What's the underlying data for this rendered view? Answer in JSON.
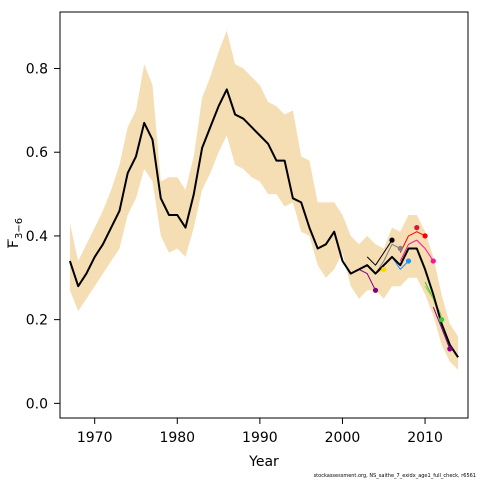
{
  "chart_data": {
    "type": "line",
    "title": "",
    "xlabel": "Year",
    "ylabel_main": "F",
    "ylabel_sub": "3−6",
    "credit": "stockassessment.org, NS_saithe_7_exidx_age1_full_check, r6561",
    "xlim": [
      1965.8,
      2015.2
    ],
    "ylim": [
      -0.035,
      0.935
    ],
    "x_ticks": [
      1970,
      1980,
      1990,
      2000,
      2010
    ],
    "y_ticks": [
      0.0,
      0.2,
      0.4,
      0.6,
      0.8
    ],
    "y_tick_labels": [
      "0.0",
      "0.2",
      "0.4",
      "0.6",
      "0.8"
    ],
    "grid": false,
    "band_color": "#F5DEB3",
    "band": {
      "x": [
        1967,
        1968,
        1969,
        1970,
        1971,
        1972,
        1973,
        1974,
        1975,
        1976,
        1977,
        1978,
        1979,
        1980,
        1981,
        1982,
        1983,
        1984,
        1985,
        1986,
        1987,
        1988,
        1989,
        1990,
        1991,
        1992,
        1993,
        1994,
        1995,
        1996,
        1997,
        1998,
        1999,
        2000,
        2001,
        2002,
        2003,
        2004,
        2005,
        2006,
        2007,
        2008,
        2009,
        2010,
        2011,
        2012,
        2013,
        2014
      ],
      "upper": [
        0.43,
        0.34,
        0.38,
        0.42,
        0.46,
        0.51,
        0.57,
        0.66,
        0.7,
        0.81,
        0.76,
        0.53,
        0.54,
        0.54,
        0.51,
        0.59,
        0.73,
        0.78,
        0.84,
        0.89,
        0.81,
        0.8,
        0.78,
        0.76,
        0.72,
        0.71,
        0.69,
        0.7,
        0.59,
        0.58,
        0.48,
        0.48,
        0.48,
        0.45,
        0.4,
        0.38,
        0.4,
        0.38,
        0.37,
        0.42,
        0.41,
        0.45,
        0.45,
        0.41,
        0.35,
        0.26,
        0.19,
        0.16
      ],
      "lower": [
        0.27,
        0.22,
        0.25,
        0.28,
        0.31,
        0.34,
        0.37,
        0.45,
        0.49,
        0.56,
        0.53,
        0.4,
        0.36,
        0.37,
        0.35,
        0.42,
        0.51,
        0.55,
        0.6,
        0.64,
        0.57,
        0.56,
        0.54,
        0.53,
        0.5,
        0.5,
        0.47,
        0.48,
        0.41,
        0.4,
        0.33,
        0.3,
        0.32,
        0.36,
        0.28,
        0.25,
        0.27,
        0.27,
        0.25,
        0.28,
        0.28,
        0.3,
        0.3,
        0.26,
        0.21,
        0.14,
        0.1,
        0.08
      ]
    },
    "series": [
      {
        "color": "#000000",
        "is_final": true,
        "x": [
          1967,
          1968,
          1969,
          1970,
          1971,
          1972,
          1973,
          1974,
          1975,
          1976,
          1977,
          1978,
          1979,
          1980,
          1981,
          1982,
          1983,
          1984,
          1985,
          1986,
          1987,
          1988,
          1989,
          1990,
          1991,
          1992,
          1993,
          1994,
          1995,
          1996,
          1997,
          1998,
          1999,
          2000,
          2001,
          2002,
          2003,
          2004,
          2005,
          2006,
          2007,
          2008,
          2009,
          2010,
          2011,
          2012,
          2013,
          2014
        ],
        "values": [
          0.34,
          0.28,
          0.31,
          0.35,
          0.38,
          0.42,
          0.46,
          0.55,
          0.59,
          0.67,
          0.63,
          0.49,
          0.45,
          0.45,
          0.42,
          0.5,
          0.61,
          0.66,
          0.71,
          0.75,
          0.69,
          0.68,
          0.66,
          0.64,
          0.62,
          0.58,
          0.58,
          0.49,
          0.48,
          0.42,
          0.37,
          0.38,
          0.41,
          0.34,
          0.31,
          0.32,
          0.33,
          0.31,
          0.33,
          0.35,
          0.33,
          0.37,
          0.37,
          0.32,
          0.26,
          0.19,
          0.14,
          0.11
        ]
      },
      {
        "color": "#000000",
        "x": [
          2003,
          2004,
          2005,
          2006
        ],
        "values": [
          0.35,
          0.33,
          0.36,
          0.39
        ]
      },
      {
        "color": "#808080",
        "x": [
          2004,
          2005,
          2006,
          2007
        ],
        "values": [
          0.31,
          0.34,
          0.38,
          0.37
        ]
      },
      {
        "color": "#FFD700",
        "x": [
          2002,
          2003,
          2004,
          2005
        ],
        "values": [
          0.32,
          0.33,
          0.31,
          0.32
        ]
      },
      {
        "color": "#1E90FF",
        "x": [
          2006,
          2007,
          2008
        ],
        "values": [
          0.35,
          0.32,
          0.34
        ]
      },
      {
        "color": "#FF0000",
        "x": [
          2007,
          2008,
          2009,
          2010
        ],
        "values": [
          0.36,
          0.4,
          0.41,
          0.4
        ]
      },
      {
        "color": "#FF1493",
        "x": [
          2007,
          2008,
          2009,
          2010,
          2011
        ],
        "values": [
          0.34,
          0.38,
          0.39,
          0.37,
          0.34
        ]
      },
      {
        "color": "#32CD32",
        "x": [
          2010,
          2011,
          2012
        ],
        "values": [
          0.29,
          0.25,
          0.2
        ]
      },
      {
        "color": "#9ACD32",
        "x": [
          2010,
          2011,
          2012
        ],
        "values": [
          0.28,
          0.25,
          0.21
        ]
      },
      {
        "color": "#800080",
        "x": [
          2001,
          2002,
          2003,
          2004
        ],
        "values": [
          0.31,
          0.32,
          0.31,
          0.27
        ]
      },
      {
        "color": "#8B008B",
        "x": [
          2011,
          2012,
          2013
        ],
        "values": [
          0.23,
          0.18,
          0.13
        ]
      }
    ],
    "endpoints": [
      {
        "color": "#800080",
        "x": 2004,
        "y": 0.27
      },
      {
        "color": "#FFD700",
        "x": 2005,
        "y": 0.32
      },
      {
        "color": "#000000",
        "x": 2006,
        "y": 0.39
      },
      {
        "color": "#808080",
        "x": 2007,
        "y": 0.37
      },
      {
        "color": "#1E90FF",
        "x": 2008,
        "y": 0.34
      },
      {
        "color": "#DC143C",
        "x": 2009,
        "y": 0.42
      },
      {
        "color": "#FF0000",
        "x": 2010,
        "y": 0.4
      },
      {
        "color": "#FF1493",
        "x": 2011,
        "y": 0.34
      },
      {
        "color": "#32CD32",
        "x": 2012,
        "y": 0.2
      },
      {
        "color": "#8B008B",
        "x": 2013,
        "y": 0.13
      }
    ]
  }
}
